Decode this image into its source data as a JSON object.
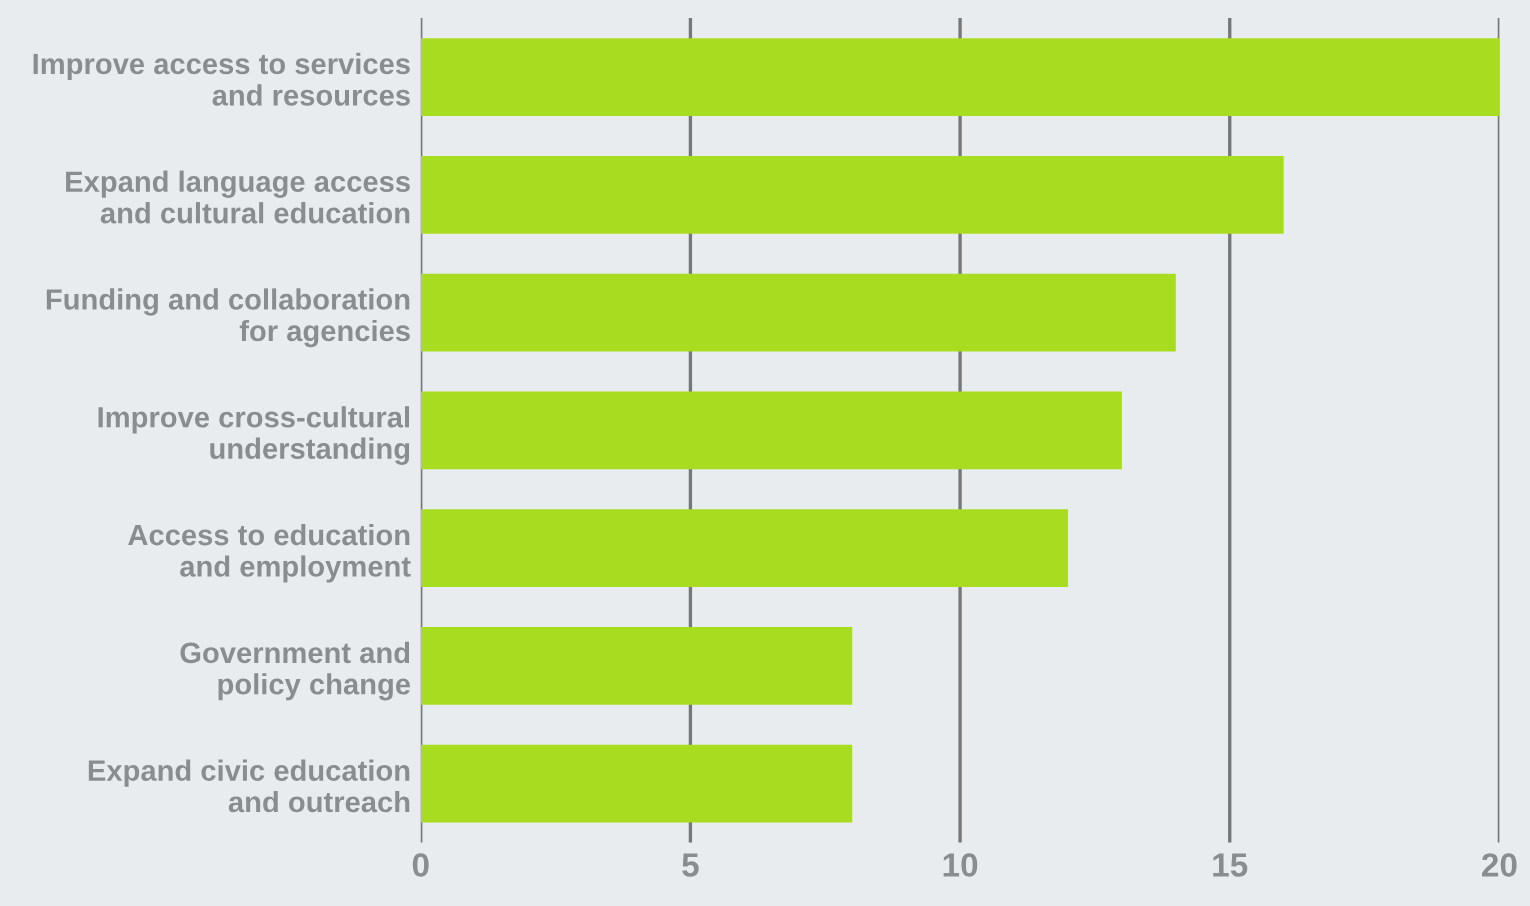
{
  "chart_data": {
    "type": "bar",
    "orientation": "horizontal",
    "categories": [
      "Improve access to services\nand resources",
      "Expand language access\nand cultural education",
      "Funding and collaboration\nfor agencies",
      "Improve cross-cultural\nunderstanding",
      "Access to education\nand employment",
      "Government and\npolicy change",
      "Expand civic education\nand outreach"
    ],
    "values": [
      20,
      16,
      14,
      13,
      12,
      8,
      8
    ],
    "color": "#a8dc20",
    "xlim": [
      0,
      20
    ],
    "xticks": [
      0,
      5,
      10,
      15,
      20
    ],
    "grid": "x"
  }
}
